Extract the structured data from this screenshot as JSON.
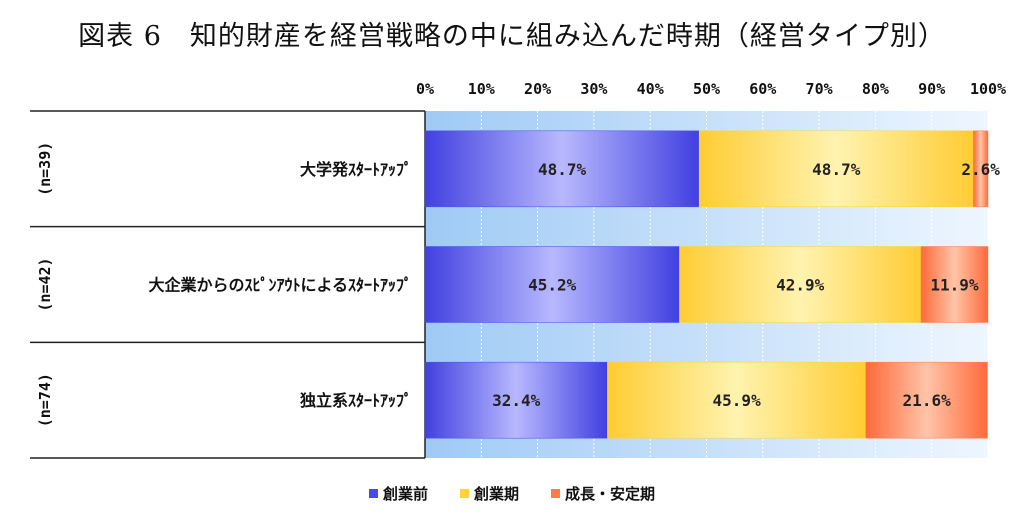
{
  "chart_data": {
    "type": "bar",
    "orientation": "horizontal",
    "stacked": true,
    "title": "図表 6　知的財産を経営戦略の中に組み込んだ時期（経営タイプ別）",
    "xlim": [
      0,
      100
    ],
    "x_ticks": [
      "0%",
      "10%",
      "20%",
      "30%",
      "40%",
      "50%",
      "60%",
      "70%",
      "80%",
      "90%",
      "100%"
    ],
    "categories": [
      {
        "name": "大学発ｽﾀｰﾄｱｯﾌﾟ",
        "n": "(n=39)"
      },
      {
        "name": "大企業からのｽﾋﾟﾝｱｳﾄによるｽﾀｰﾄｱｯﾌﾟ",
        "n": "(n=42)"
      },
      {
        "name": "独立系ｽﾀｰﾄｱｯﾌﾟ",
        "n": "(n=74)"
      }
    ],
    "series": [
      {
        "name": "創業前",
        "color": "#4a4ae8",
        "values": [
          48.7,
          45.2,
          32.4
        ],
        "labels": [
          "48.7%",
          "45.2%",
          "32.4%"
        ]
      },
      {
        "name": "創業期",
        "color": "#ffd23a",
        "values": [
          48.7,
          42.9,
          45.9
        ],
        "labels": [
          "48.7%",
          "42.9%",
          "45.9%"
        ]
      },
      {
        "name": "成長・安定期",
        "color": "#ff7a4a",
        "values": [
          2.6,
          11.9,
          21.6
        ],
        "labels": [
          "2.6%",
          "11.9%",
          "21.6%"
        ]
      }
    ],
    "legend_position": "bottom",
    "grid": true
  }
}
